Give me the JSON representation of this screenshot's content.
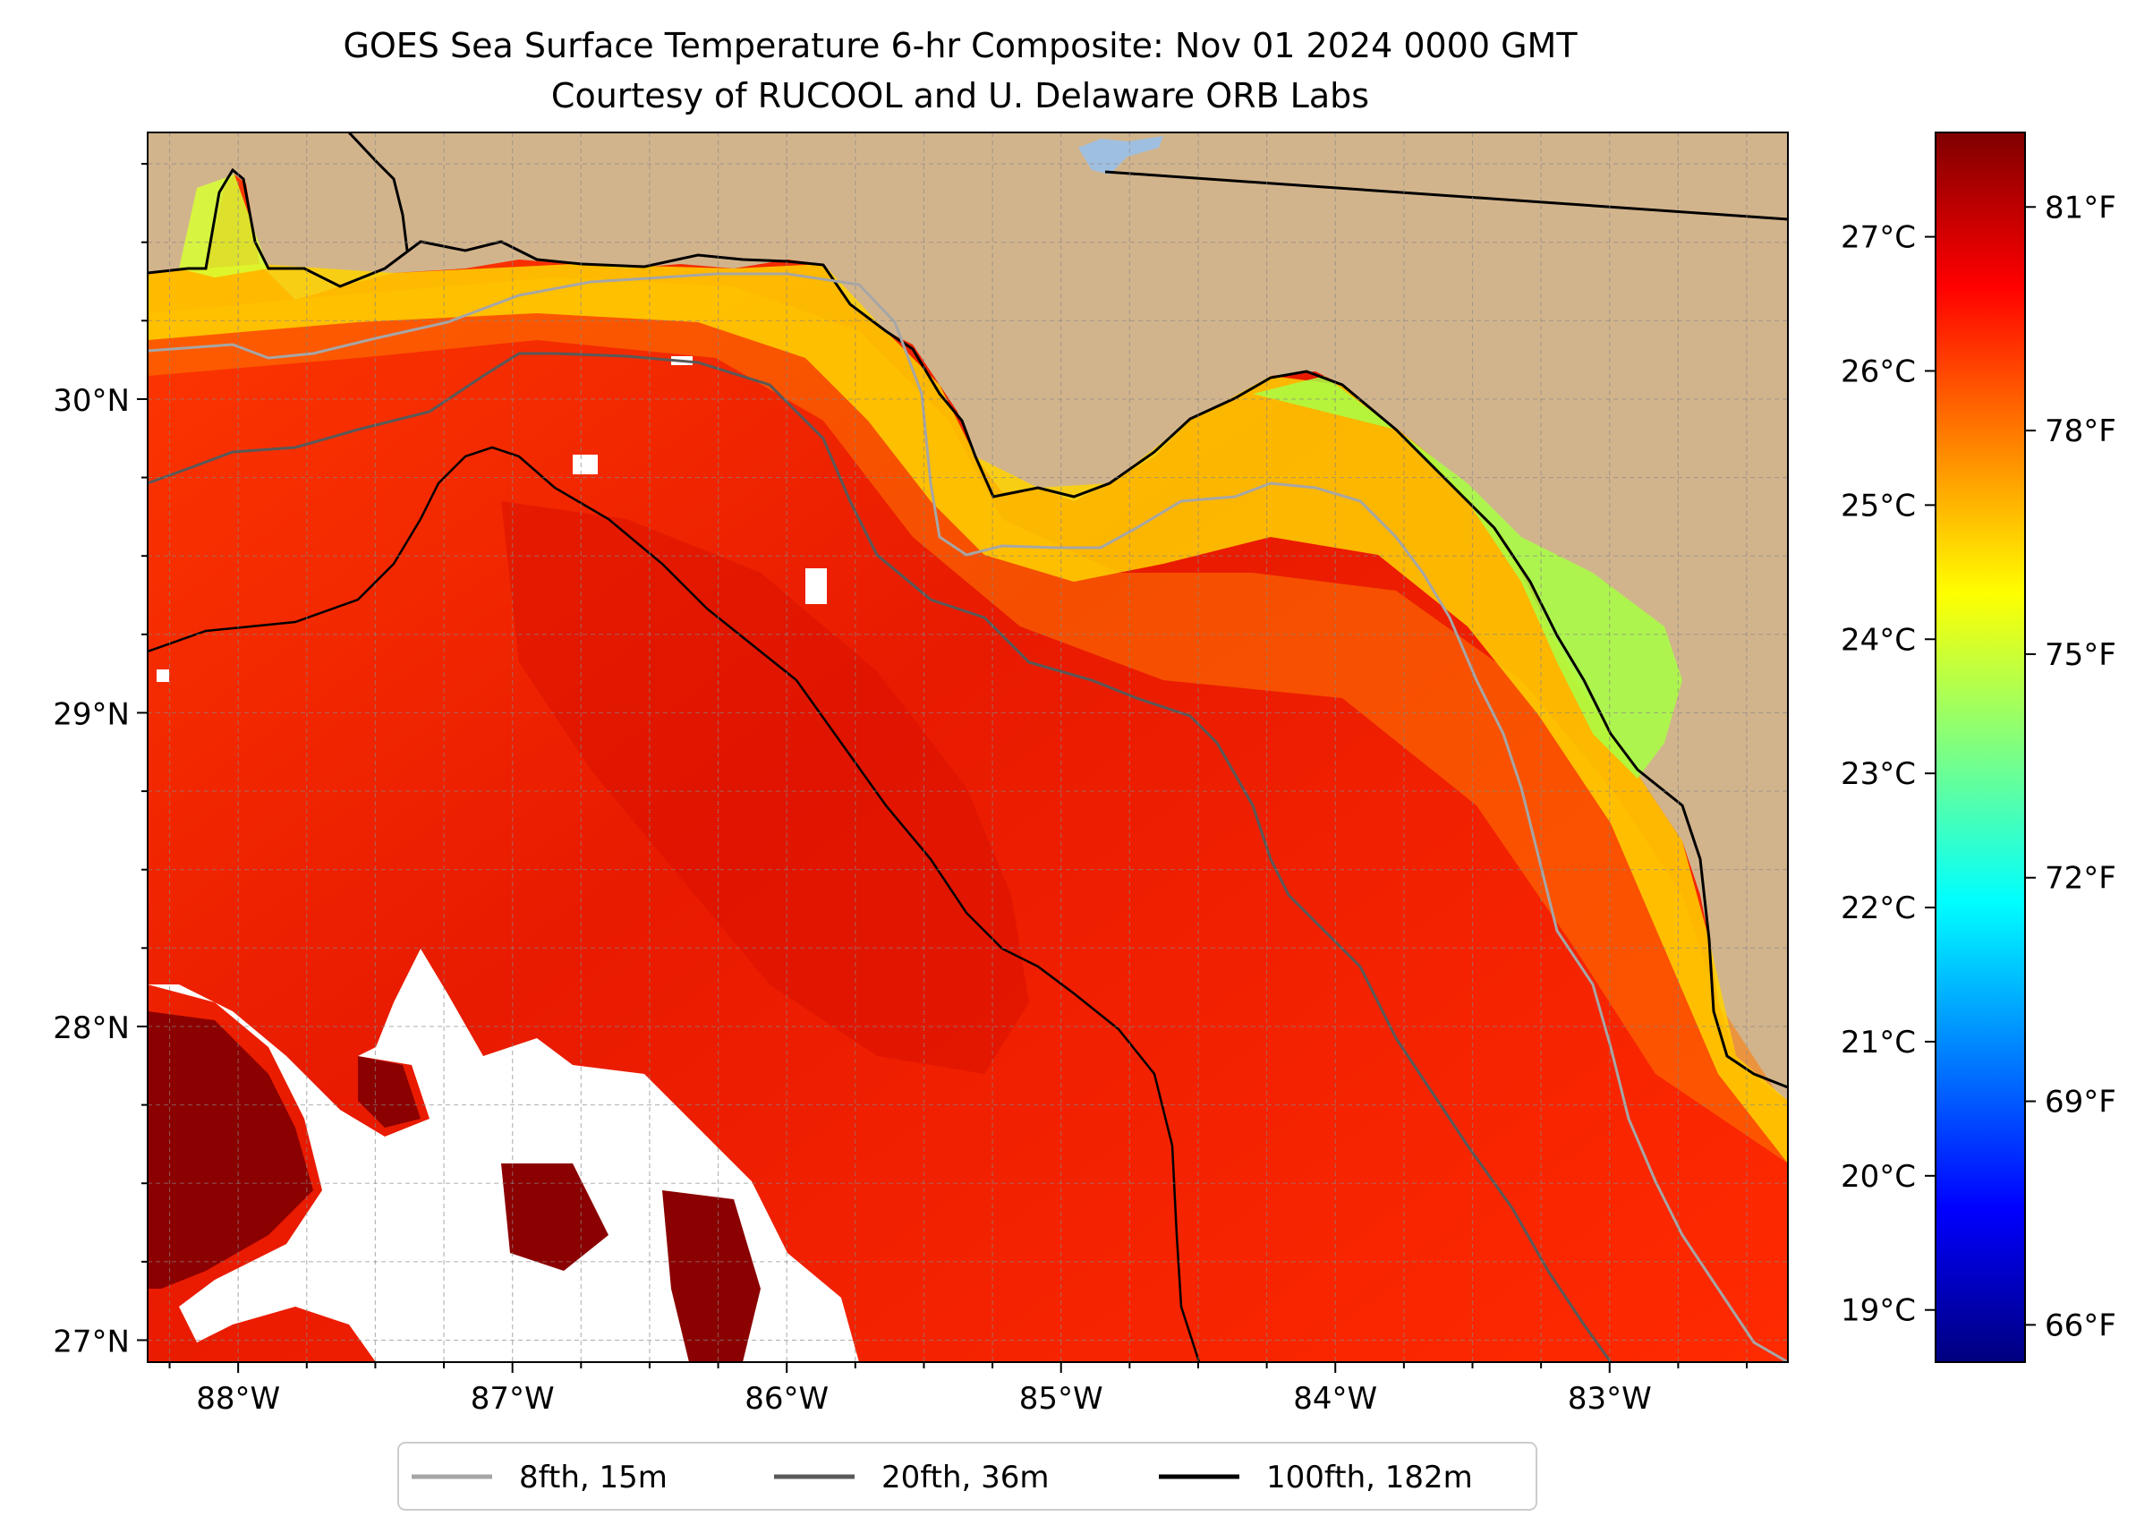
{
  "title": {
    "line1": "GOES Sea Surface Temperature 6-hr Composite: Nov 01 2024 0000 GMT",
    "line2": "Courtesy of RUCOOL and U. Delaware ORB Labs"
  },
  "map": {
    "lon_range": [
      -88.33,
      -82.35
    ],
    "lat_range": [
      26.93,
      30.85
    ],
    "lat_ticks": [
      {
        "value": 30,
        "label": "30°N"
      },
      {
        "value": 29,
        "label": "29°N"
      },
      {
        "value": 28,
        "label": "28°N"
      },
      {
        "value": 27,
        "label": "27°N"
      }
    ],
    "lon_ticks": [
      {
        "value": -88,
        "label": "88°W"
      },
      {
        "value": -87,
        "label": "87°W"
      },
      {
        "value": -86,
        "label": "86°W"
      },
      {
        "value": -85,
        "label": "85°W"
      },
      {
        "value": -84,
        "label": "84°W"
      },
      {
        "value": -83,
        "label": "83°W"
      }
    ],
    "minor_grid_step_deg": 0.25,
    "colors": {
      "land": "#d2b48c",
      "cloud_gap": "#ffffff",
      "lake": "#9fbfe0",
      "iso_8fth": "#a6a6a6",
      "iso_20fth": "#595959",
      "iso_100fth": "#000000",
      "coast": "#000000"
    }
  },
  "colorbar": {
    "celsius_ticks": [
      "27°C",
      "26°C",
      "25°C",
      "24°C",
      "23°C",
      "22°C",
      "21°C",
      "20°C",
      "19°C"
    ],
    "celsius_values": [
      27,
      26,
      25,
      24,
      23,
      22,
      21,
      20,
      19
    ],
    "fahrenheit_ticks": [
      "81°F",
      "78°F",
      "75°F",
      "72°F",
      "69°F",
      "66°F"
    ],
    "fahrenheit_values": [
      81,
      78,
      75,
      72,
      69,
      66
    ],
    "range_f": [
      65.5,
      82.0
    ],
    "colormap": "jet"
  },
  "legend": {
    "items": [
      {
        "label": "8fth, 15m",
        "color": "#a6a6a6"
      },
      {
        "label": "20fth, 36m",
        "color": "#595959"
      },
      {
        "label": "100fth, 182m",
        "color": "#000000"
      }
    ]
  }
}
